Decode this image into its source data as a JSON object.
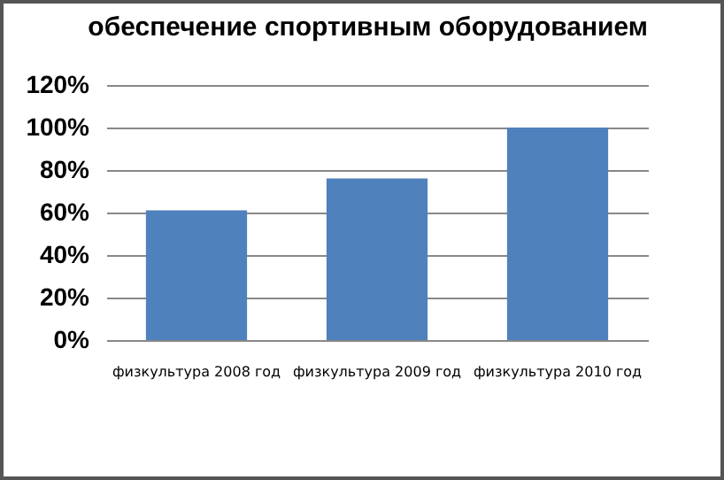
{
  "chart_data": {
    "type": "bar",
    "title": "обеспечение спортивным оборудованием",
    "categories": [
      "физкультура 2008 год",
      "физкультура 2009 год",
      "физкультура 2010 год"
    ],
    "values": [
      61,
      76,
      100
    ],
    "color": "#4f81bd",
    "ylim": [
      0,
      120
    ],
    "yticks": [
      {
        "value": 0,
        "label": "0%"
      },
      {
        "value": 20,
        "label": "20%"
      },
      {
        "value": 40,
        "label": "40%"
      },
      {
        "value": 60,
        "label": "60%"
      },
      {
        "value": 80,
        "label": "80%"
      },
      {
        "value": 100,
        "label": "100%"
      },
      {
        "value": 120,
        "label": "120%"
      }
    ],
    "grid": "y"
  }
}
